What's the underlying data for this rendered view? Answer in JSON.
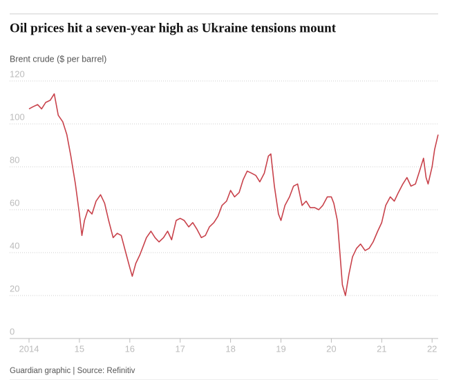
{
  "chart_data": {
    "type": "line",
    "title": "Oil prices hit a seven-year high as Ukraine tensions mount",
    "subtitle": "Brent crude ($ per barrel)",
    "source": "Guardian graphic | Source: Refinitiv",
    "x": [
      2014.0,
      2014.08,
      2014.17,
      2014.25,
      2014.33,
      2014.42,
      2014.5,
      2014.58,
      2014.67,
      2014.75,
      2014.83,
      2014.92,
      2015.0,
      2015.05,
      2015.1,
      2015.17,
      2015.25,
      2015.33,
      2015.42,
      2015.5,
      2015.58,
      2015.67,
      2015.75,
      2015.83,
      2015.92,
      2016.0,
      2016.05,
      2016.12,
      2016.2,
      2016.25,
      2016.33,
      2016.42,
      2016.5,
      2016.58,
      2016.67,
      2016.75,
      2016.83,
      2016.92,
      2017.0,
      2017.08,
      2017.17,
      2017.25,
      2017.33,
      2017.42,
      2017.5,
      2017.58,
      2017.67,
      2017.75,
      2017.83,
      2017.92,
      2018.0,
      2018.08,
      2018.17,
      2018.25,
      2018.33,
      2018.42,
      2018.5,
      2018.58,
      2018.67,
      2018.75,
      2018.8,
      2018.87,
      2018.95,
      2019.0,
      2019.08,
      2019.17,
      2019.25,
      2019.33,
      2019.42,
      2019.5,
      2019.58,
      2019.67,
      2019.75,
      2019.83,
      2019.92,
      2020.0,
      2020.05,
      2020.12,
      2020.17,
      2020.22,
      2020.28,
      2020.35,
      2020.42,
      2020.5,
      2020.58,
      2020.67,
      2020.75,
      2020.83,
      2020.92,
      2021.0,
      2021.08,
      2021.17,
      2021.25,
      2021.33,
      2021.42,
      2021.5,
      2021.58,
      2021.67,
      2021.75,
      2021.83,
      2021.88,
      2021.92,
      2022.0,
      2022.05,
      2022.12
    ],
    "series": [
      {
        "name": "Brent crude",
        "color": "#c8414a",
        "values": [
          107,
          108,
          109,
          107,
          110,
          111,
          114,
          104,
          101,
          95,
          85,
          72,
          58,
          48,
          55,
          60,
          58,
          64,
          67,
          63,
          55,
          47,
          49,
          48,
          40,
          33,
          29,
          35,
          39,
          42,
          47,
          50,
          47,
          45,
          47,
          50,
          46,
          55,
          56,
          55,
          52,
          54,
          51,
          47,
          48,
          52,
          54,
          57,
          62,
          64,
          69,
          66,
          68,
          74,
          78,
          77,
          76,
          73,
          77,
          85,
          86,
          71,
          58,
          55,
          62,
          66,
          71,
          72,
          62,
          64,
          61,
          61,
          60,
          62,
          66,
          66,
          63,
          55,
          40,
          25,
          20,
          30,
          38,
          42,
          44,
          41,
          42,
          45,
          50,
          54,
          62,
          66,
          64,
          68,
          72,
          75,
          71,
          72,
          78,
          84,
          75,
          72,
          80,
          88,
          95
        ]
      }
    ],
    "xlim": [
      2014,
      2022.12
    ],
    "xticks": [
      2014,
      {
        "value": 2015,
        "label": "15"
      },
      {
        "value": 2016,
        "label": "16"
      },
      {
        "value": 2017,
        "label": "17"
      },
      {
        "value": 2018,
        "label": "18"
      },
      {
        "value": 2019,
        "label": "19"
      },
      {
        "value": 2020,
        "label": "20"
      },
      {
        "value": 2021,
        "label": "21"
      },
      {
        "value": 2022,
        "label": "22"
      }
    ],
    "ylim": [
      0,
      120
    ],
    "yticks": [
      0,
      20,
      40,
      60,
      80,
      100,
      120
    ],
    "grid": true
  }
}
